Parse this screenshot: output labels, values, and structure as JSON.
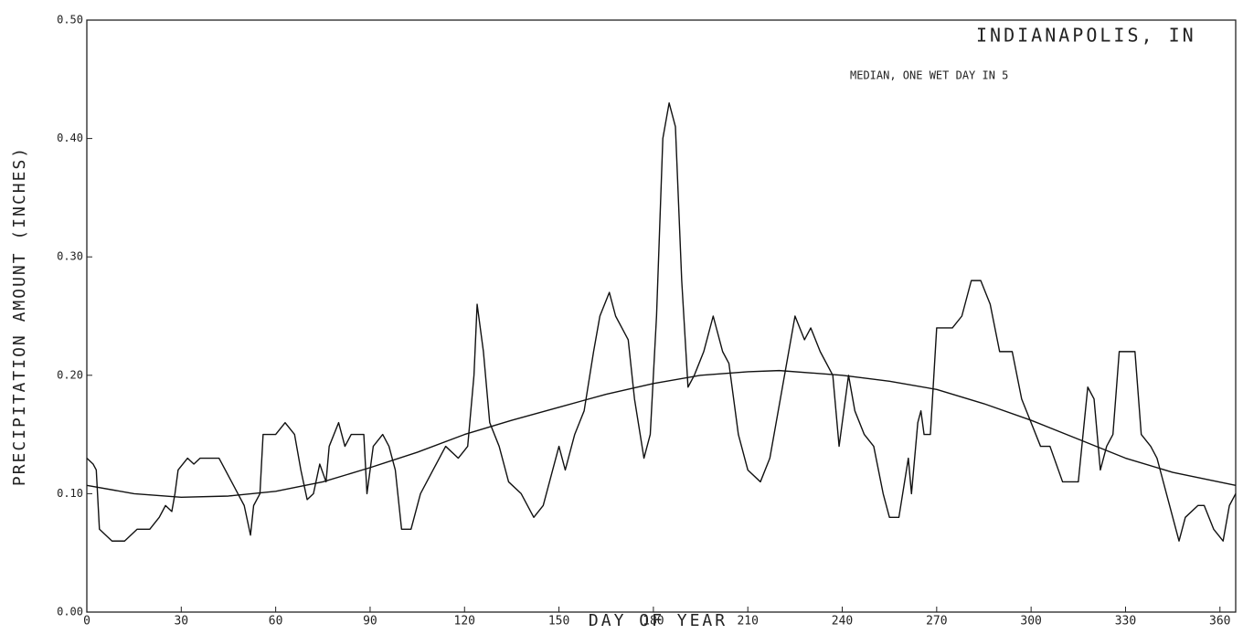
{
  "chart_data": {
    "type": "line",
    "title": "INDIANAPOLIS, IN",
    "subtitle": "MEDIAN, ONE WET DAY IN 5",
    "xlabel": "DAY OF YEAR",
    "ylabel": "PRECIPITATION AMOUNT (INCHES)",
    "xlim": [
      0,
      365
    ],
    "ylim": [
      0,
      0.5
    ],
    "xticks": [
      0,
      30,
      60,
      90,
      120,
      150,
      180,
      210,
      240,
      270,
      300,
      330,
      360
    ],
    "yticks": [
      {
        "value": 0,
        "label": "0.00"
      },
      {
        "value": 0.1,
        "label": "0.10"
      },
      {
        "value": 0.2,
        "label": "0.20"
      },
      {
        "value": 0.3,
        "label": "0.30"
      },
      {
        "value": 0.4,
        "label": "0.40"
      },
      {
        "value": 0.5,
        "label": "0.50"
      }
    ],
    "series": [
      {
        "color": "#111111",
        "x": [
          0,
          2,
          3,
          4,
          6,
          8,
          12,
          16,
          20,
          23,
          25,
          27,
          28,
          29,
          32,
          34,
          36,
          42,
          46,
          48,
          50,
          52,
          53,
          55,
          56,
          60,
          63,
          66,
          68,
          70,
          72,
          74,
          76,
          77,
          80,
          82,
          84,
          88,
          89,
          91,
          94,
          96,
          98,
          100,
          103,
          106,
          110,
          114,
          118,
          121,
          123,
          124,
          126,
          128,
          131,
          134,
          138,
          142,
          145,
          148,
          150,
          152,
          155,
          158,
          161,
          163,
          166,
          168,
          170,
          172,
          174,
          177,
          179,
          181,
          183,
          185,
          187,
          189,
          191,
          193,
          196,
          199,
          202,
          204,
          207,
          210,
          214,
          217,
          221,
          225,
          228,
          230,
          233,
          237,
          239,
          242,
          244,
          247,
          250,
          253,
          255,
          258,
          261,
          262,
          264,
          265,
          266,
          268,
          270,
          275,
          278,
          281,
          284,
          287,
          290,
          294,
          297,
          300,
          303,
          306,
          310,
          315,
          318,
          320,
          322,
          324,
          326,
          328,
          333,
          335,
          338,
          340,
          343,
          347,
          349,
          353,
          355,
          358,
          361,
          363,
          365
        ],
        "values": [
          0.13,
          0.125,
          0.12,
          0.07,
          0.065,
          0.06,
          0.06,
          0.07,
          0.07,
          0.08,
          0.09,
          0.085,
          0.1,
          0.12,
          0.13,
          0.125,
          0.13,
          0.13,
          0.11,
          0.1,
          0.09,
          0.065,
          0.09,
          0.1,
          0.15,
          0.15,
          0.16,
          0.15,
          0.12,
          0.095,
          0.1,
          0.125,
          0.11,
          0.14,
          0.16,
          0.14,
          0.15,
          0.15,
          0.1,
          0.14,
          0.15,
          0.14,
          0.12,
          0.07,
          0.07,
          0.1,
          0.12,
          0.14,
          0.13,
          0.14,
          0.2,
          0.26,
          0.22,
          0.16,
          0.14,
          0.11,
          0.1,
          0.08,
          0.09,
          0.12,
          0.14,
          0.12,
          0.15,
          0.17,
          0.22,
          0.25,
          0.27,
          0.25,
          0.24,
          0.23,
          0.18,
          0.13,
          0.15,
          0.25,
          0.4,
          0.43,
          0.41,
          0.28,
          0.19,
          0.2,
          0.22,
          0.25,
          0.22,
          0.21,
          0.15,
          0.12,
          0.11,
          0.13,
          0.19,
          0.25,
          0.23,
          0.24,
          0.22,
          0.2,
          0.14,
          0.2,
          0.17,
          0.15,
          0.14,
          0.1,
          0.08,
          0.08,
          0.13,
          0.1,
          0.16,
          0.17,
          0.15,
          0.15,
          0.24,
          0.24,
          0.25,
          0.28,
          0.28,
          0.26,
          0.22,
          0.22,
          0.18,
          0.16,
          0.14,
          0.14,
          0.11,
          0.11,
          0.19,
          0.18,
          0.12,
          0.14,
          0.15,
          0.22,
          0.22,
          0.15,
          0.14,
          0.13,
          0.1,
          0.06,
          0.08,
          0.09,
          0.09,
          0.07,
          0.06,
          0.09,
          0.1
        ]
      },
      {
        "color": "#111111",
        "x": [
          0,
          15,
          30,
          45,
          60,
          75,
          90,
          105,
          120,
          135,
          150,
          165,
          180,
          195,
          210,
          220,
          240,
          255,
          270,
          285,
          300,
          315,
          330,
          345,
          365
        ],
        "values": [
          0.107,
          0.1,
          0.097,
          0.098,
          0.102,
          0.11,
          0.122,
          0.135,
          0.15,
          0.162,
          0.173,
          0.184,
          0.193,
          0.2,
          0.203,
          0.204,
          0.2,
          0.195,
          0.188,
          0.176,
          0.162,
          0.146,
          0.13,
          0.118,
          0.107
        ]
      }
    ]
  }
}
